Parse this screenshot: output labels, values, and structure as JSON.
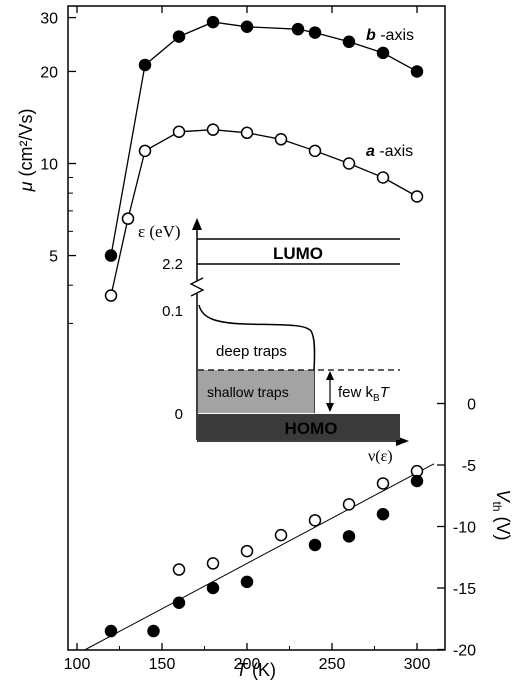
{
  "chart_data": [
    {
      "type": "line",
      "xlabel_var": "T",
      "xlabel_unit": " (K)",
      "ylabel_var": "μ",
      "ylabel_unit": " (cm²/Vs)",
      "yscale": "log",
      "xlim": [
        100,
        320
      ],
      "ylim": [
        2.5,
        33
      ],
      "x_ticks": [
        "100",
        "150",
        "200",
        "250",
        "300"
      ],
      "y_ticks": [
        "5",
        "10",
        "20",
        "30"
      ],
      "series": [
        {
          "name": "b -axis",
          "name_bold": "b",
          "name_rest": " -axis",
          "marker": "filled-circle",
          "x": [
            120,
            140,
            160,
            180,
            200,
            230,
            240,
            260,
            280,
            300
          ],
          "y": [
            5.0,
            21.0,
            26.0,
            29.0,
            28.0,
            27.5,
            26.8,
            25.0,
            23.0,
            20.0
          ]
        },
        {
          "name": "a -axis",
          "name_bold": "a",
          "name_rest": " -axis",
          "marker": "open-circle",
          "x": [
            120,
            130,
            140,
            160,
            180,
            200,
            220,
            240,
            260,
            280,
            300
          ],
          "y": [
            3.7,
            6.6,
            11.0,
            12.7,
            12.9,
            12.6,
            12.0,
            11.0,
            10.0,
            9.0,
            7.8
          ]
        }
      ]
    },
    {
      "type": "scatter",
      "ylabel_var": "V",
      "ylabel_sub": "th",
      "ylabel_unit": " (V)",
      "xlim": [
        100,
        320
      ],
      "ylim": [
        -20,
        3
      ],
      "y_ticks": [
        "0",
        "-5",
        "-10",
        "-15",
        "-20"
      ],
      "series": [
        {
          "marker": "open-circle",
          "x": [
            160,
            180,
            200,
            220,
            240,
            260,
            280,
            300
          ],
          "y": [
            -13.5,
            -13.0,
            -12.0,
            -10.7,
            -9.5,
            -8.2,
            -6.5,
            -5.5
          ]
        },
        {
          "marker": "filled-circle",
          "x": [
            120,
            145,
            160,
            180,
            200,
            240,
            260,
            280,
            300
          ],
          "y": [
            -18.5,
            -18.5,
            -16.2,
            -15.0,
            -14.5,
            -11.5,
            -10.8,
            -9.0,
            -6.3
          ]
        }
      ],
      "fit_line": {
        "x": [
          105,
          310
        ],
        "y": [
          -20.0,
          -4.9
        ]
      }
    },
    {
      "type": "diagram",
      "y_var": "ε",
      "y_unit": " (eV)",
      "x_label": "ν(ε)",
      "y_ticks": [
        "2.2",
        "0.1",
        "0"
      ],
      "lumo_label": "LUMO",
      "homo_label": "HOMO",
      "deep_label": "deep traps",
      "shallow_label": "shallow traps",
      "few_label": "few k",
      "few_sub": "B",
      "few_var": "T"
    }
  ]
}
